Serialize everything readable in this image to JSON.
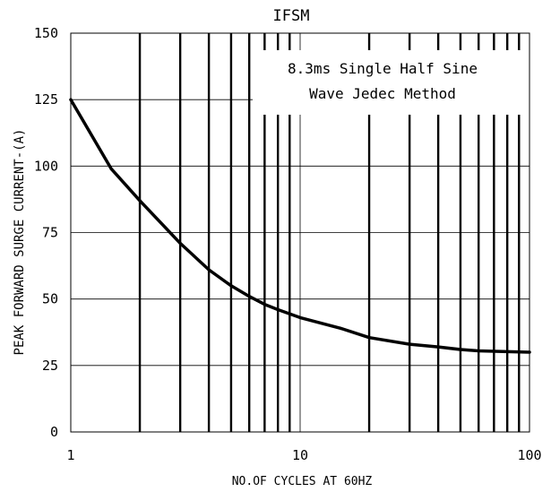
{
  "chart_data": {
    "type": "line",
    "title": "IFSM",
    "xlabel": "NO.OF CYCLES AT 60HZ",
    "ylabel": "PEAK FORWARD SURGE CURRENT-(A)",
    "xscale": "log",
    "xlim": [
      1,
      100
    ],
    "ylim": [
      0,
      150
    ],
    "x_ticks": [
      1,
      10,
      100
    ],
    "y_ticks": [
      0,
      25,
      50,
      75,
      100,
      125,
      150
    ],
    "grid": true,
    "annotation": [
      "8.3ms Single Half Sine",
      "Wave Jedec Method"
    ],
    "series": [
      {
        "x": [
          1,
          1.5,
          2,
          3,
          4,
          5,
          6,
          7,
          8,
          10,
          15,
          20,
          30,
          40,
          50,
          60,
          80,
          100
        ],
        "values": [
          125,
          99,
          87,
          71,
          61,
          55,
          51,
          48,
          46,
          43,
          39,
          35.5,
          33,
          32,
          31,
          30.5,
          30.2,
          30
        ]
      }
    ],
    "colors": {
      "line": "#000000",
      "grid": "#000000",
      "background": "#ffffff"
    }
  }
}
